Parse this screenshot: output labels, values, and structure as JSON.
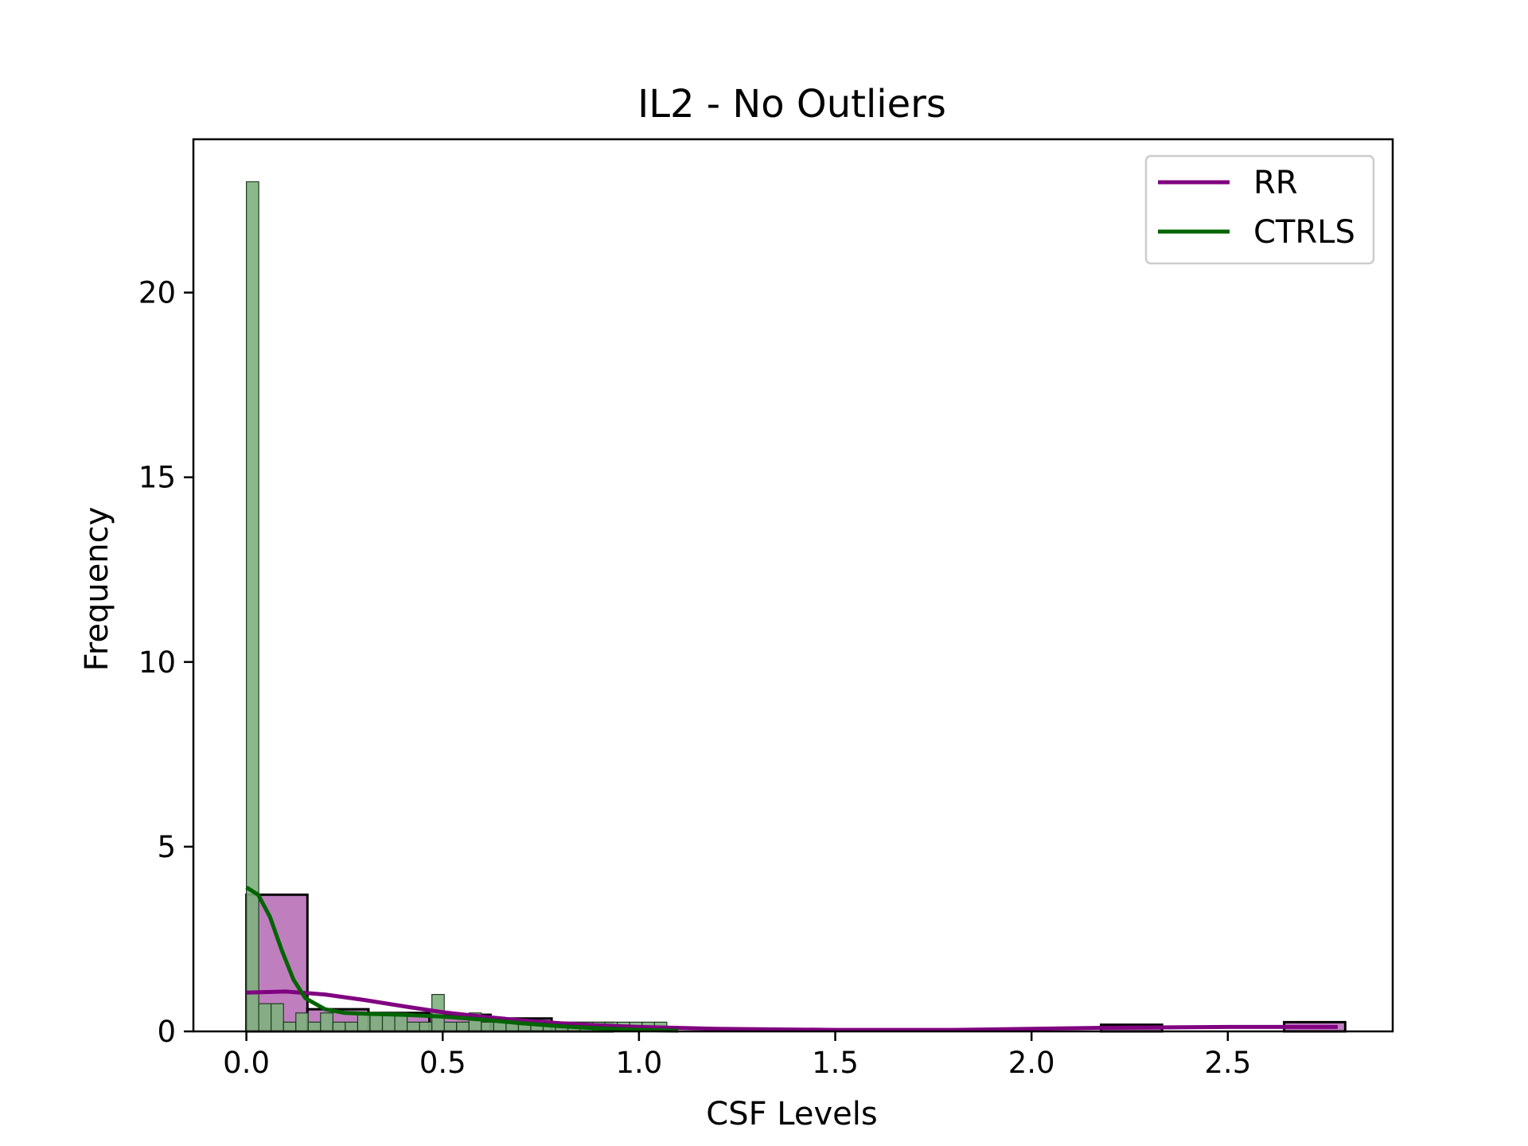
{
  "chart_data": {
    "type": "histogram",
    "title": "IL2 - No Outliers",
    "xlabel": "CSF Levels",
    "ylabel": "Frequency",
    "xlim": [
      -0.135,
      2.92
    ],
    "ylim": [
      0,
      24.15
    ],
    "xticks": [
      0.0,
      0.5,
      1.0,
      1.5,
      2.0,
      2.5
    ],
    "xtick_labels": [
      "0.0",
      "0.5",
      "1.0",
      "1.5",
      "2.0",
      "2.5"
    ],
    "yticks": [
      0,
      5,
      10,
      15,
      20
    ],
    "ytick_labels": [
      "0",
      "5",
      "10",
      "15",
      "20"
    ],
    "grid": false,
    "legend_position": "top-right",
    "series": [
      {
        "name": "RR",
        "color": "#800080",
        "fill_color": "#bf7fbf",
        "bin_width": 0.1555,
        "bin_start": 0.0,
        "counts": [
          3.7,
          0.6,
          0.5,
          0.45,
          0.35,
          0.23,
          0.0,
          0.0,
          0.0,
          0.0,
          0.0,
          0.0,
          0.0,
          0.0,
          0.18,
          0.0,
          0.0,
          0.25
        ],
        "kde": {
          "x": [
            0.0,
            0.1,
            0.2,
            0.3,
            0.4,
            0.5,
            0.6,
            0.7,
            0.8,
            0.9,
            1.0,
            1.2,
            1.5,
            1.8,
            2.0,
            2.2,
            2.5,
            2.78
          ],
          "y": [
            1.05,
            1.08,
            1.0,
            0.85,
            0.68,
            0.52,
            0.4,
            0.3,
            0.22,
            0.16,
            0.12,
            0.07,
            0.04,
            0.04,
            0.07,
            0.1,
            0.12,
            0.12
          ]
        }
      },
      {
        "name": "CTRLS",
        "color": "#006400",
        "fill_color": "#7fb17f",
        "bin_width": 0.0315,
        "bin_start": 0.0,
        "counts": [
          23,
          0.75,
          0.75,
          0.25,
          0.5,
          0.25,
          0.5,
          0.25,
          0.25,
          0.5,
          0.5,
          0.5,
          0.5,
          0.25,
          0.25,
          1.0,
          0.25,
          0.25,
          0.5,
          0.25,
          0.25,
          0.25,
          0.25,
          0.25,
          0.25,
          0.25,
          0.25,
          0.25,
          0.25,
          0.25,
          0.25,
          0.25,
          0.25,
          0.25
        ],
        "kde": {
          "x": [
            0.0,
            0.03,
            0.06,
            0.09,
            0.12,
            0.15,
            0.2,
            0.25,
            0.3,
            0.4,
            0.5,
            0.6,
            0.7,
            0.8,
            0.9,
            1.0,
            1.1
          ],
          "y": [
            3.9,
            3.7,
            3.1,
            2.2,
            1.4,
            0.9,
            0.6,
            0.5,
            0.48,
            0.45,
            0.4,
            0.32,
            0.22,
            0.14,
            0.08,
            0.04,
            0.02
          ]
        }
      }
    ]
  }
}
